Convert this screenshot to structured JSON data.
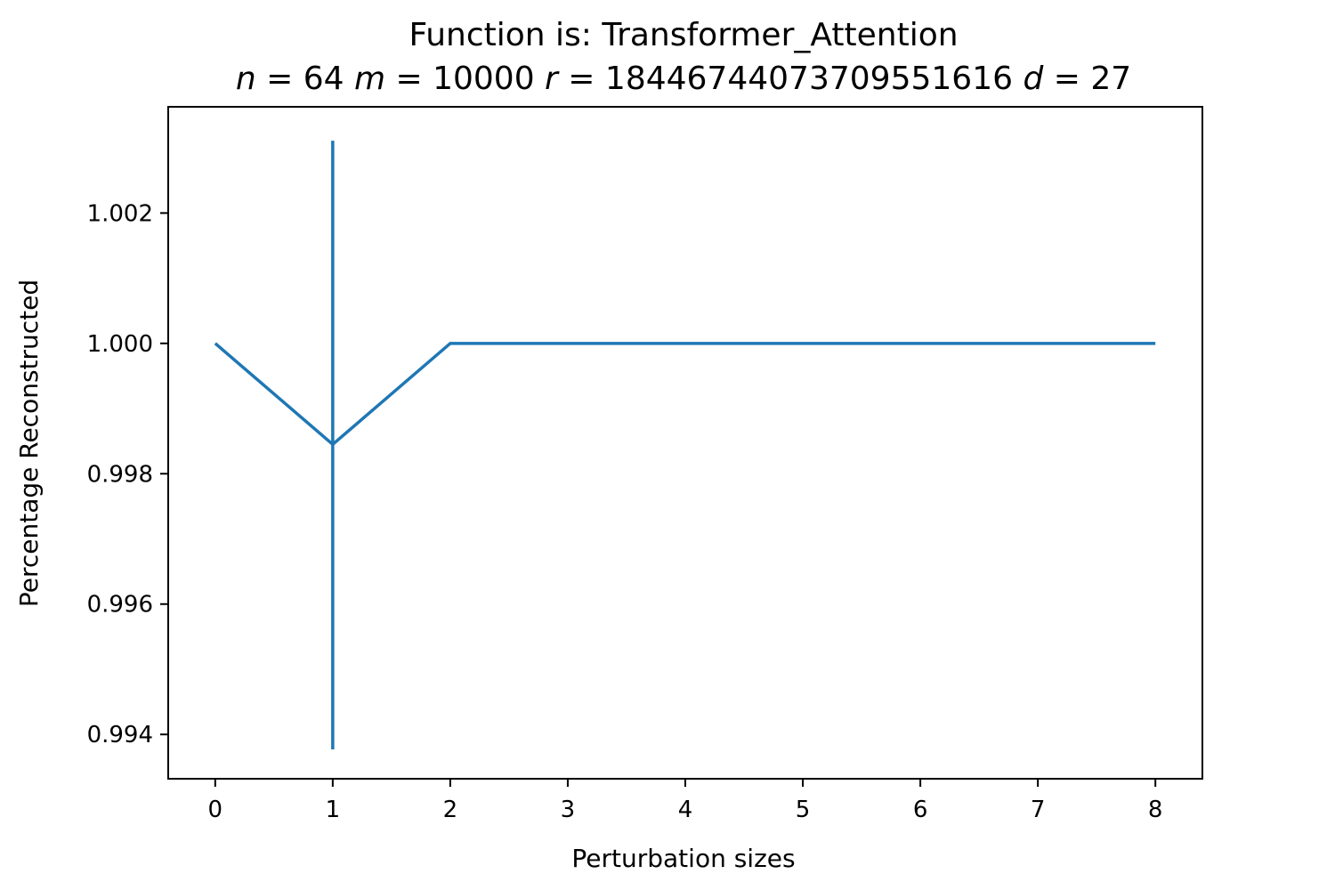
{
  "chart_data": {
    "type": "line",
    "title": "Function is: Transformer_Attention",
    "subtitle_parts": [
      {
        "text": "n",
        "math": true
      },
      {
        "text": " = 64 ",
        "math": false
      },
      {
        "text": "m",
        "math": true
      },
      {
        "text": " = 10000 ",
        "math": false
      },
      {
        "text": "r",
        "math": true
      },
      {
        "text": " = 18446744073709551616 ",
        "math": false
      },
      {
        "text": "d",
        "math": true
      },
      {
        "text": " = 27",
        "math": false
      }
    ],
    "xlabel": "Perturbation sizes",
    "ylabel": "Percentage Reconstructed",
    "xlim": [
      -0.4,
      8.4
    ],
    "ylim": [
      0.99332,
      1.00363
    ],
    "xticks": [
      0,
      1,
      2,
      3,
      4,
      5,
      6,
      7,
      8
    ],
    "xtick_labels": [
      "0",
      "1",
      "2",
      "3",
      "4",
      "5",
      "6",
      "7",
      "8"
    ],
    "yticks": [
      0.994,
      0.996,
      0.998,
      1.0,
      1.002
    ],
    "ytick_labels": [
      "0.994",
      "0.996",
      "0.998",
      "1.000",
      "1.002"
    ],
    "grid": false,
    "series": [
      {
        "color": "#1f77b4",
        "x": [
          0,
          1,
          2,
          3,
          4,
          5,
          6,
          7,
          8
        ],
        "y": [
          1.0,
          0.99845,
          1.0,
          1.0,
          1.0,
          1.0,
          1.0,
          1.0,
          1.0
        ],
        "error_bars": [
          {
            "x": 1,
            "low": 0.99377,
            "high": 1.00311
          }
        ]
      }
    ]
  }
}
